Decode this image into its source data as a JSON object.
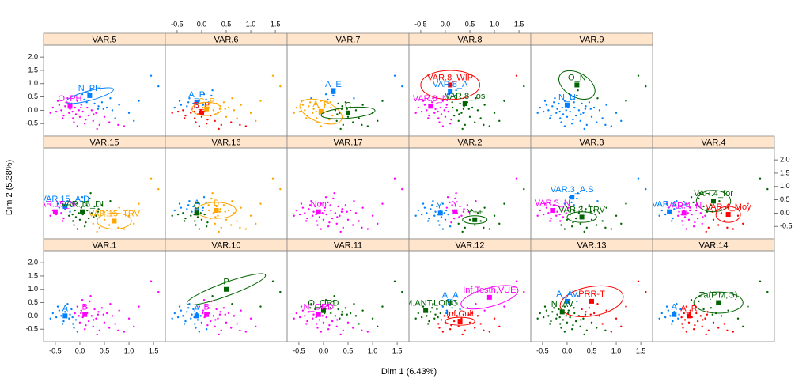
{
  "chart_data": {
    "type": "scatter",
    "xlabel": "Dim 1 (6.43%)",
    "ylabel": "Dim 2 (5.38%)",
    "xlim": [
      -0.74,
      1.74
    ],
    "ylim": [
      -0.97,
      2.45
    ],
    "xticks": [
      -0.5,
      {
        "value": 0,
        "label": "0.0"
      },
      0.5,
      {
        "value": 1,
        "label": "1.0"
      },
      1.5
    ],
    "yticks": [
      -0.5,
      {
        "value": 0,
        "label": "0.0"
      },
      0.5,
      {
        "value": 1,
        "label": "1.0"
      },
      1.5,
      {
        "value": 2,
        "label": "2.0"
      }
    ],
    "points": {
      "x": [
        -0.55,
        -0.48,
        -0.42,
        -0.38,
        -0.33,
        -0.3,
        -0.27,
        -0.22,
        -0.2,
        -0.17,
        -0.14,
        -0.1,
        -0.08,
        -0.05,
        -0.02,
        0.0,
        0.03,
        0.06,
        0.09,
        0.12,
        0.15,
        0.18,
        0.2,
        0.24,
        0.27,
        0.3,
        0.33,
        0.37,
        0.4,
        0.45,
        0.5,
        0.55,
        0.6,
        0.66,
        0.72,
        0.8,
        0.9,
        1.0,
        1.2,
        1.45,
        1.6,
        -0.6,
        -0.35,
        -0.25,
        -0.12,
        0.05,
        0.1,
        0.22,
        0.35,
        0.48,
        -0.45,
        -0.15,
        0.02,
        0.28,
        0.62,
        0.78,
        1.1,
        0.38,
        -0.05,
        0.14
      ],
      "y": [
        0.1,
        -0.05,
        0.2,
        0.0,
        -0.2,
        0.15,
        0.3,
        -0.1,
        0.05,
        0.25,
        -0.3,
        0.1,
        -0.15,
        0.35,
        0.0,
        -0.25,
        0.2,
        -0.05,
        0.4,
        -0.35,
        0.1,
        -0.2,
        0.55,
        0.0,
        -0.4,
        0.25,
        -0.1,
        0.05,
        -0.55,
        0.3,
        -0.25,
        0.1,
        -0.45,
        0.0,
        -0.3,
        0.2,
        -0.6,
        -0.1,
        0.35,
        1.3,
        0.9,
        -0.1,
        -0.3,
        0.45,
        -0.45,
        0.6,
        -0.5,
        0.75,
        -0.7,
        0.05,
        0.35,
        -0.05,
        0.1,
        -0.15,
        0.45,
        -0.55,
        -0.4,
        0.15,
        -0.6,
        0.3
      ]
    },
    "panels": [
      {
        "name": "VAR.5",
        "groups": [
          {
            "label": "N_PH",
            "x": 0.2,
            "y": 0.55,
            "color": "#0080ff",
            "ellipse": [
              0.5,
              0.18,
              -15
            ]
          },
          {
            "label": "O_PH",
            "x": -0.2,
            "y": 0.15,
            "color": "#ff00ff"
          }
        ]
      },
      {
        "name": "VAR.6",
        "groups": [
          {
            "label": "A_P",
            "x": -0.1,
            "y": 0.3,
            "color": "#0080ff"
          },
          {
            "label": "B_P",
            "x": 0.0,
            "y": -0.1,
            "color": "#ff0000"
          },
          {
            "label": "C_P",
            "x": 0.1,
            "y": 0.05,
            "color": "#ffa500",
            "ellipse": [
              0.3,
              0.25,
              0
            ]
          }
        ]
      },
      {
        "name": "VAR.7",
        "groups": [
          {
            "label": "A_E",
            "x": 0.2,
            "y": 0.7,
            "color": "#0080ff"
          },
          {
            "label": "A_P",
            "x": -0.05,
            "y": -0.05,
            "color": "#ffa500",
            "ellipse": [
              0.45,
              0.4,
              20
            ]
          },
          {
            "label": "C",
            "x": 0.5,
            "y": -0.1,
            "color": "#006400",
            "ellipse": [
              0.55,
              0.2,
              -5
            ]
          }
        ]
      },
      {
        "name": "VAR.8",
        "groups": [
          {
            "label": "VAR.8_WIP",
            "x": 0.1,
            "y": 0.95,
            "color": "#ff0000",
            "ellipse": [
              0.6,
              0.55,
              0
            ]
          },
          {
            "label": "VAR.8_A",
            "x": 0.1,
            "y": 0.7,
            "color": "#0080ff"
          },
          {
            "label": "VAR.8_los",
            "x": 0.4,
            "y": 0.25,
            "color": "#006400"
          },
          {
            "label": "VAR.8_N",
            "x": -0.3,
            "y": 0.15,
            "color": "#ff00ff"
          }
        ]
      },
      {
        "name": "VAR.9",
        "groups": [
          {
            "label": "O_N",
            "x": 0.2,
            "y": 0.95,
            "color": "#006400",
            "ellipse": [
              0.4,
              0.45,
              30
            ]
          },
          {
            "label": "N_N",
            "x": 0.0,
            "y": 0.2,
            "color": "#0080ff"
          }
        ]
      },
      {
        "name": "VAR.15",
        "groups": [
          {
            "label": "VAR.15_A.D",
            "x": -0.3,
            "y": 0.25,
            "color": "#0080ff"
          },
          {
            "label": "VAR.15_N",
            "x": -0.5,
            "y": 0.05,
            "color": "#ff00ff"
          },
          {
            "label": "VAR.15_DI",
            "x": 0.05,
            "y": 0.05,
            "color": "#006400"
          },
          {
            "label": "VAR.15_TRV",
            "x": 0.7,
            "y": -0.3,
            "color": "#ffa500",
            "ellipse": [
              0.35,
              0.3,
              0
            ]
          }
        ]
      },
      {
        "name": "VAR.16",
        "groups": [
          {
            "label": "A",
            "x": -0.1,
            "y": 0.1,
            "color": "#0080ff"
          },
          {
            "label": "B",
            "x": 0.3,
            "y": 0.1,
            "color": "#ffa500",
            "ellipse": [
              0.4,
              0.3,
              0
            ]
          },
          {
            "label": "C",
            "x": -0.1,
            "y": 0.0,
            "color": "#006400"
          }
        ]
      },
      {
        "name": "VAR.17",
        "groups": [
          {
            "label": "Non",
            "x": -0.1,
            "y": 0.05,
            "color": "#ff00ff"
          }
        ]
      },
      {
        "name": "VAR.2",
        "groups": [
          {
            "label": "Y-",
            "x": -0.1,
            "y": 0.0,
            "color": "#0080ff"
          },
          {
            "label": "Y",
            "x": 0.2,
            "y": 0.05,
            "color": "#ff00ff"
          },
          {
            "label": "Y++",
            "x": 0.6,
            "y": -0.25,
            "color": "#006400",
            "ellipse": [
              0.25,
              0.15,
              0
            ]
          }
        ]
      },
      {
        "name": "VAR.3",
        "groups": [
          {
            "label": "VAR.3_A.S",
            "x": 0.1,
            "y": 0.6,
            "color": "#0080ff"
          },
          {
            "label": "VAR.3_N",
            "x": -0.3,
            "y": 0.1,
            "color": "#ff00ff"
          },
          {
            "label": "VAR.3_TRV",
            "x": 0.3,
            "y": -0.15,
            "color": "#006400",
            "ellipse": [
              0.3,
              0.2,
              0
            ]
          }
        ]
      },
      {
        "name": "VAR.4",
        "groups": [
          {
            "label": "VAR.4_for",
            "x": 0.5,
            "y": 0.45,
            "color": "#006400",
            "ellipse": [
              0.35,
              0.4,
              0
            ]
          },
          {
            "label": "VAR.4_A",
            "x": -0.4,
            "y": 0.05,
            "color": "#0080ff"
          },
          {
            "label": "VAR.4_N",
            "x": -0.1,
            "y": 0.0,
            "color": "#ff00ff"
          },
          {
            "label": "VAR.4_Moy",
            "x": 0.8,
            "y": -0.05,
            "color": "#ff0000",
            "ellipse": [
              0.25,
              0.3,
              0
            ]
          }
        ]
      },
      {
        "name": "VAR.1",
        "groups": [
          {
            "label": "A",
            "x": -0.3,
            "y": 0.0,
            "color": "#0080ff"
          },
          {
            "label": "B",
            "x": 0.1,
            "y": 0.05,
            "color": "#ff00ff"
          }
        ]
      },
      {
        "name": "VAR.10",
        "groups": [
          {
            "label": "P",
            "x": 0.5,
            "y": 1.0,
            "color": "#006400",
            "ellipse": [
              0.85,
              0.25,
              -20
            ]
          },
          {
            "label": "A",
            "x": -0.1,
            "y": 0.0,
            "color": "#0080ff"
          },
          {
            "label": "B",
            "x": 0.1,
            "y": 0.05,
            "color": "#ff00ff"
          }
        ]
      },
      {
        "name": "VAR.11",
        "groups": [
          {
            "label": "O_ORD",
            "x": 0.0,
            "y": 0.2,
            "color": "#006400"
          },
          {
            "label": "N_ORD",
            "x": -0.1,
            "y": 0.05,
            "color": "#ff00ff"
          }
        ]
      },
      {
        "name": "VAR.12",
        "groups": [
          {
            "label": "Inf,Testh,VUE",
            "x": 0.9,
            "y": 0.7,
            "color": "#ff00ff",
            "ellipse": [
              0.6,
              0.35,
              -15
            ]
          },
          {
            "label": "A_A",
            "x": 0.1,
            "y": 0.5,
            "color": "#0080ff"
          },
          {
            "label": "CAM.ANT.LONG",
            "x": -0.4,
            "y": 0.2,
            "color": "#006400"
          },
          {
            "label": "Inf,Cult",
            "x": 0.3,
            "y": -0.2,
            "color": "#ff0000",
            "ellipse": [
              0.3,
              0.15,
              0
            ]
          }
        ]
      },
      {
        "name": "VAR.13",
        "groups": [
          {
            "label": "PRR-T",
            "x": 0.5,
            "y": 0.55,
            "color": "#ff0000",
            "ellipse": [
              0.65,
              0.55,
              -10
            ]
          },
          {
            "label": "A_AV",
            "x": 0.0,
            "y": 0.55,
            "color": "#0080ff"
          },
          {
            "label": "N_AV",
            "x": -0.1,
            "y": 0.15,
            "color": "#006400"
          }
        ]
      },
      {
        "name": "VAR.14",
        "groups": [
          {
            "label": "Ta(P,M,G)",
            "x": 0.6,
            "y": 0.5,
            "color": "#006400",
            "ellipse": [
              0.5,
              0.4,
              0
            ]
          },
          {
            "label": "A_R",
            "x": 0.0,
            "y": 0.0,
            "color": "#ff0000"
          },
          {
            "label": "A",
            "x": -0.3,
            "y": 0.05,
            "color": "#0080ff"
          }
        ]
      }
    ]
  }
}
